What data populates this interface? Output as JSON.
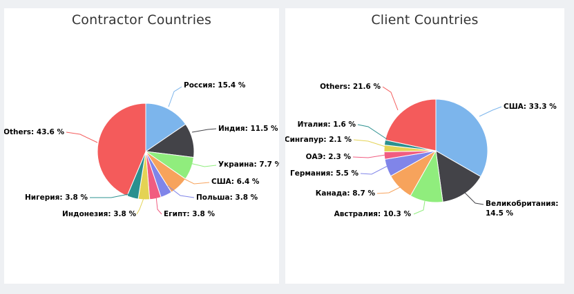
{
  "chart_data": [
    {
      "type": "pie",
      "title": "Contractor Countries",
      "slices": [
        {
          "label": "Россия: 15.4 %",
          "value": 15.4,
          "color": "#7cb5ec"
        },
        {
          "label": "Индия: 11.5 %",
          "value": 11.5,
          "color": "#434348"
        },
        {
          "label": "Украина: 7.7 %",
          "value": 7.7,
          "color": "#90ed7d"
        },
        {
          "label": "США: 6.4 %",
          "value": 6.4,
          "color": "#f7a35c"
        },
        {
          "label": "Польша: 3.8 %",
          "value": 3.8,
          "color": "#8085e9"
        },
        {
          "label": "Египт: 3.8 %",
          "value": 3.8,
          "color": "#f15c80"
        },
        {
          "label": "Индонезия: 3.8 %",
          "value": 3.8,
          "color": "#e4d354"
        },
        {
          "label": "Нигерия: 3.8 %",
          "value": 3.8,
          "color": "#2b908f"
        },
        {
          "label": "Others: 43.6 %",
          "value": 43.6,
          "color": "#f45b5b"
        }
      ]
    },
    {
      "type": "pie",
      "title": "Client Countries",
      "slices": [
        {
          "label": "США: 33.3 %",
          "value": 33.3,
          "color": "#7cb5ec"
        },
        {
          "label": "Великобритания:",
          "label2": "14.5 %",
          "value": 14.5,
          "color": "#434348"
        },
        {
          "label": "Австралия: 10.3 %",
          "value": 10.3,
          "color": "#90ed7d"
        },
        {
          "label": "Канада: 8.7 %",
          "value": 8.7,
          "color": "#f7a35c"
        },
        {
          "label": "Германия: 5.5 %",
          "value": 5.5,
          "color": "#8085e9"
        },
        {
          "label": "ОАЭ: 2.3 %",
          "value": 2.3,
          "color": "#f15c80"
        },
        {
          "label": "Сингапур: 2.1 %",
          "value": 2.1,
          "color": "#e4d354"
        },
        {
          "label": "Италия: 1.6 %",
          "value": 1.6,
          "color": "#2b908f"
        },
        {
          "label": "Others: 21.6 %",
          "value": 21.6,
          "color": "#f45b5b"
        }
      ]
    }
  ]
}
